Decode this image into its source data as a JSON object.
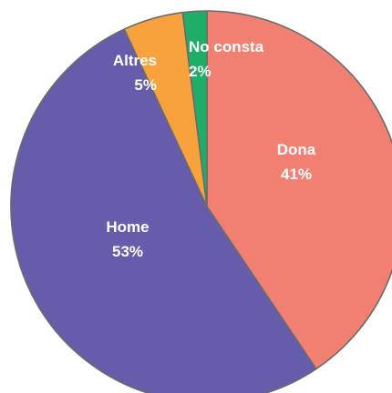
{
  "chart_data": {
    "type": "pie",
    "title": "",
    "start_angle_deg": 0,
    "direction": "clockwise",
    "slices": [
      {
        "label": "Dona",
        "percent_label": "41%",
        "value": 41,
        "color": "#f28072"
      },
      {
        "label": "Home",
        "percent_label": "53%",
        "value": 53,
        "color": "#655dab"
      },
      {
        "label": "Altres",
        "percent_label": "5%",
        "value": 5,
        "color": "#f8a23e"
      },
      {
        "label": "No consta",
        "percent_label": "2%",
        "value": 2,
        "color": "#1fae68"
      }
    ]
  }
}
